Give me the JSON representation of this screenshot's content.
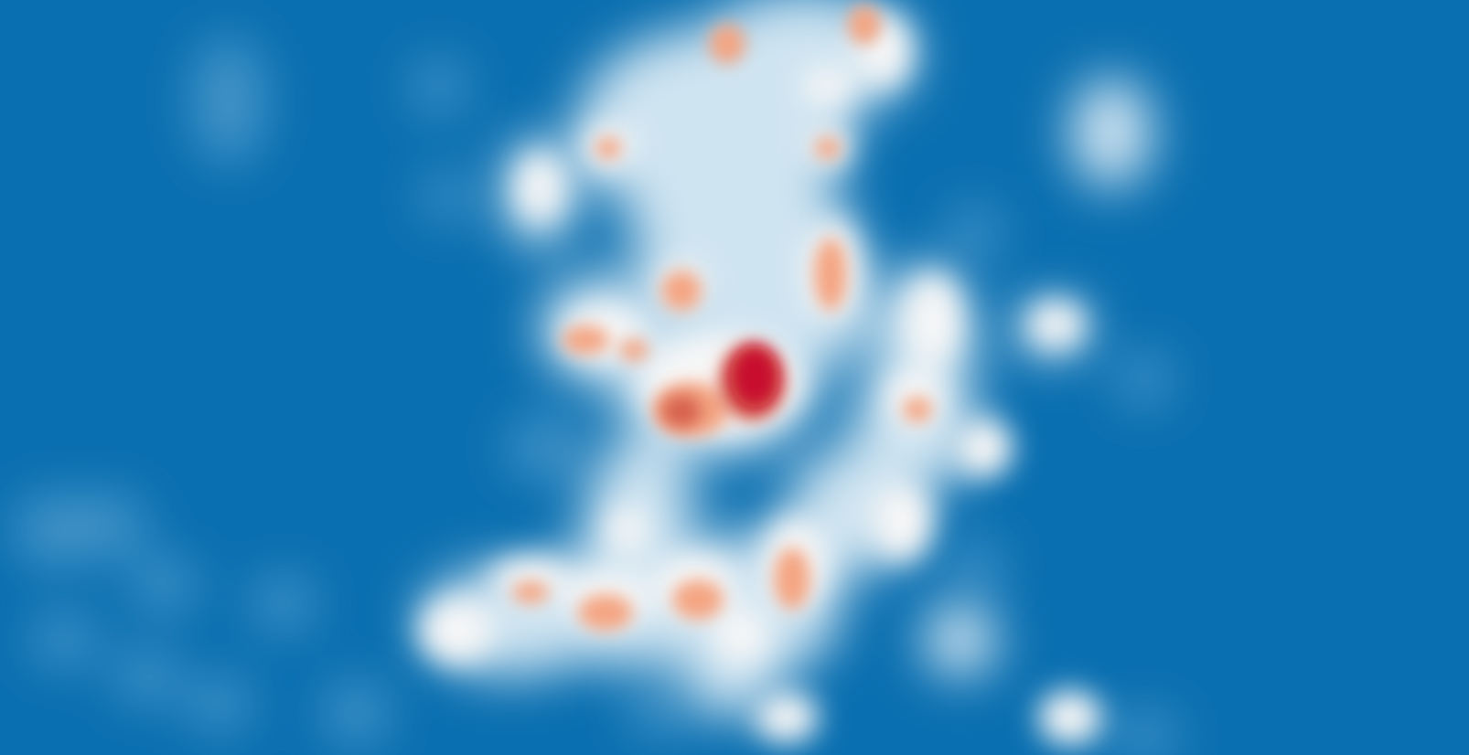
{
  "map": {
    "type": "density-heatmap",
    "labels": [],
    "legend": null,
    "colors": {
      "background": "#0a6fb0",
      "low": "#5aa3d0",
      "light": "#cfe4f1",
      "mid": "#f7f7f7",
      "warm": "#f4a582",
      "hot": "#d6604d",
      "peak": "#c8102e"
    },
    "hotspots": [
      {
        "id": "core-peak",
        "intensity": 1.0
      },
      {
        "id": "core-left",
        "intensity": 0.75
      },
      {
        "id": "upper-center",
        "intensity": 0.65
      },
      {
        "id": "upper-right",
        "intensity": 0.6
      },
      {
        "id": "west-arc",
        "intensity": 0.55
      },
      {
        "id": "south-cluster-a",
        "intensity": 0.6
      },
      {
        "id": "south-cluster-b",
        "intensity": 0.55
      },
      {
        "id": "south-cluster-c",
        "intensity": 0.5
      }
    ]
  }
}
